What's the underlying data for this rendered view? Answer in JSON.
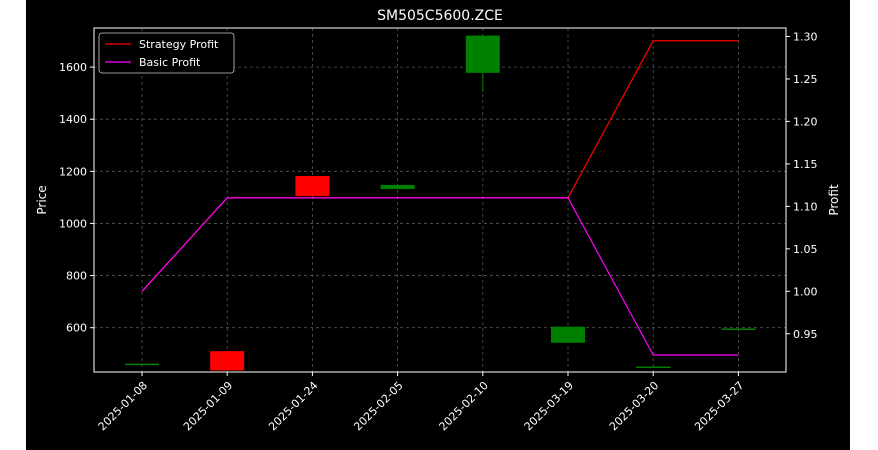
{
  "chart_data": {
    "type": "candlestick+line",
    "title": "SM505C5600.ZCE",
    "xlabel": "",
    "ylabel_left": "Price",
    "ylabel_right": "Profit",
    "grid": true,
    "legend_position": "top-left",
    "categories": [
      "2025-01-08",
      "2025-01-09",
      "2025-01-24",
      "2025-02-05",
      "2025-02-10",
      "2025-03-19",
      "2025-03-20",
      "2025-03-27"
    ],
    "ylim_left": [
      430,
      1750
    ],
    "yticks_left": [
      600,
      800,
      1000,
      1200,
      1400,
      1600
    ],
    "ylim_right": [
      0.905,
      1.31
    ],
    "yticks_right": [
      0.95,
      1.0,
      1.05,
      1.1,
      1.15,
      1.2,
      1.25,
      1.3
    ],
    "candles": [
      {
        "open": 462,
        "close": 462,
        "high": 462,
        "low": 462
      },
      {
        "open": 510,
        "close": 436,
        "high": 510,
        "low": 436
      },
      {
        "open": 1182,
        "close": 1105,
        "high": 1182,
        "low": 1105
      },
      {
        "open": 1132,
        "close": 1148,
        "high": 1148,
        "low": 1132
      },
      {
        "open": 1578,
        "close": 1721,
        "high": 1721,
        "low": 1505
      },
      {
        "open": 542,
        "close": 604,
        "high": 604,
        "low": 542
      },
      {
        "open": 451,
        "close": 451,
        "high": 451,
        "low": 451
      },
      {
        "open": 597,
        "close": 597,
        "high": 597,
        "low": 597
      }
    ],
    "series": [
      {
        "name": "Strategy Profit",
        "color": "#ff0000",
        "values": [
          1.0,
          1.11,
          1.11,
          1.11,
          1.11,
          1.11,
          1.295,
          1.295
        ]
      },
      {
        "name": "Basic Profit",
        "color": "#ff00ff",
        "values": [
          1.0,
          1.11,
          1.11,
          1.11,
          1.11,
          1.11,
          0.925,
          0.925
        ]
      }
    ],
    "colors": {
      "up": "#008000",
      "down": "#ff0000",
      "background": "#000000",
      "text": "#ffffff",
      "grid": "#555555"
    }
  }
}
